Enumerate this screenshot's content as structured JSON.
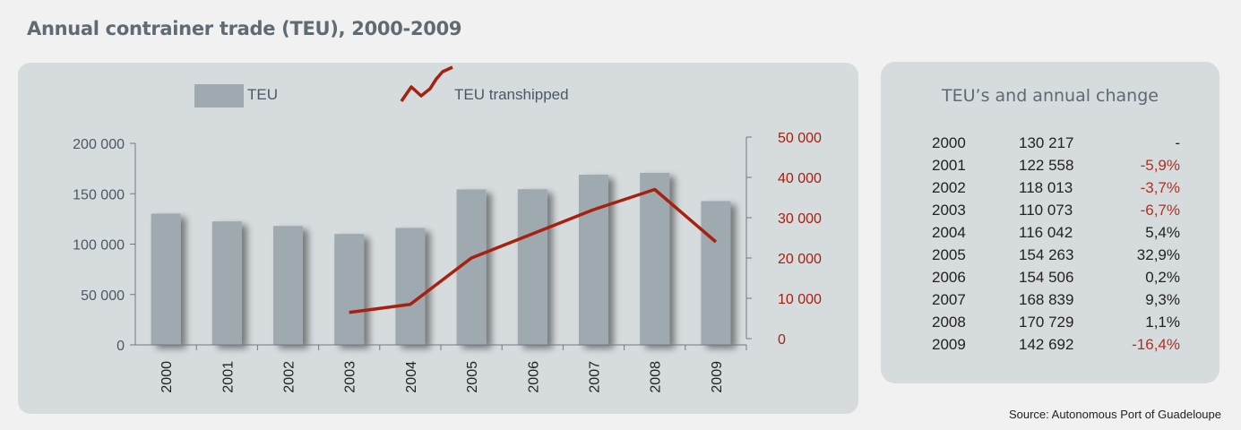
{
  "page_title": "Annual contrainer trade (TEU), 2000-2009",
  "source": "Source: Autonomous Port of Guadeloupe",
  "colors": {
    "bar": "#9ea9b0",
    "line": "#a8200f",
    "panel": "#d6dbdd",
    "negative": "#b3301f"
  },
  "chart_data": {
    "type": "bar",
    "categories": [
      "2000",
      "2001",
      "2002",
      "2003",
      "2004",
      "2005",
      "2006",
      "2007",
      "2008",
      "2009"
    ],
    "series": [
      {
        "name": "TEU",
        "type": "bar",
        "axis": "left",
        "values": [
          130217,
          122558,
          118013,
          110073,
          116042,
          154263,
          154506,
          168839,
          170729,
          142692
        ]
      },
      {
        "name": "TEU transhipped",
        "type": "line",
        "axis": "right",
        "values": [
          null,
          null,
          null,
          6500,
          8500,
          20000,
          26000,
          32000,
          37000,
          24000
        ]
      }
    ],
    "left_axis": {
      "ylim": [
        0,
        200000
      ],
      "ticks": [
        "0",
        "50 000",
        "100 000",
        "150 000",
        "200 000"
      ]
    },
    "right_axis": {
      "ylim": [
        0,
        50000
      ],
      "ticks": [
        "0",
        "10 000",
        "20 000",
        "30 000",
        "40 000",
        "50 000"
      ]
    },
    "legend": "top"
  },
  "table": {
    "title": "TEU’s and annual change",
    "rows": [
      {
        "year": "2000",
        "teu": "130 217",
        "change": "-",
        "negative": false
      },
      {
        "year": "2001",
        "teu": "122 558",
        "change": "-5,9%",
        "negative": true
      },
      {
        "year": "2002",
        "teu": "118 013",
        "change": "-3,7%",
        "negative": true
      },
      {
        "year": "2003",
        "teu": "110 073",
        "change": "-6,7%",
        "negative": true
      },
      {
        "year": "2004",
        "teu": "116 042",
        "change": "5,4%",
        "negative": false
      },
      {
        "year": "2005",
        "teu": "154 263",
        "change": "32,9%",
        "negative": false
      },
      {
        "year": "2006",
        "teu": "154 506",
        "change": "0,2%",
        "negative": false
      },
      {
        "year": "2007",
        "teu": "168 839",
        "change": "9,3%",
        "negative": false
      },
      {
        "year": "2008",
        "teu": "170 729",
        "change": "1,1%",
        "negative": false
      },
      {
        "year": "2009",
        "teu": "142 692",
        "change": "-16,4%",
        "negative": true
      }
    ]
  }
}
